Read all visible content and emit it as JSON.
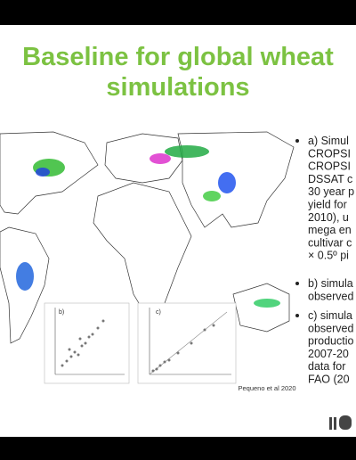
{
  "title_lines": [
    "Baseline for global wheat",
    "simulations"
  ],
  "bullets": [
    {
      "lines": [
        "a) Simul",
        "CROPSI",
        "CROPSI",
        "DSSAT c",
        "30 year p",
        "yield for",
        "2010), u",
        "mega en",
        "cultivar c",
        "× 0.5º pi"
      ]
    },
    {
      "lines": [
        "b) simula",
        "observed"
      ]
    },
    {
      "lines": [
        "c) simula",
        "observed",
        "productio",
        "2007-20",
        "data for",
        "FAO (20"
      ]
    }
  ],
  "figure": {
    "panel_labels": [
      "b)",
      "c)"
    ],
    "credit": "Pequeno et al 2020"
  }
}
